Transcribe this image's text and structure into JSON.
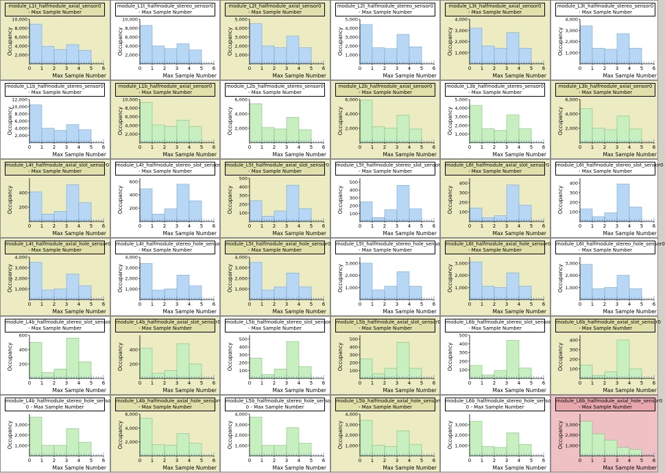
{
  "common": {
    "xlabel": "Max Sample Number",
    "ylabel": "Occupancy",
    "x_ticks": [
      0,
      1,
      2,
      3,
      4,
      5,
      6
    ]
  },
  "colors": {
    "blue_fill": "#b7d7f4",
    "green_fill": "#c8efc0",
    "bar_stroke": "#7aa7d0",
    "axis": "#000000",
    "grid_tick": "#4a7fb4",
    "bg_white": "#ffffff",
    "bg_tan": "#ecebc2",
    "bg_pink": "#efc0c4"
  },
  "chart_data": [
    {
      "type": "bar",
      "title": "module_L1t_halfmodule_axial_sensor0",
      "subtitle": "- Max Sample Number",
      "bg": "tan",
      "color": "blue",
      "ylim": [
        0,
        10000
      ],
      "yticks": [
        2000,
        4000,
        6000,
        8000,
        10000
      ],
      "x": [
        0,
        1,
        2,
        3,
        4
      ],
      "values": [
        8900,
        3900,
        3200,
        4300,
        3000
      ]
    },
    {
      "type": "bar",
      "title": "module_L1t_halfmodule_stereo_sensor0",
      "subtitle": "- Max Sample Number",
      "bg": "white",
      "color": "blue",
      "ylim": [
        0,
        10000
      ],
      "yticks": [
        2000,
        4000,
        6000,
        8000,
        10000
      ],
      "x": [
        0,
        1,
        2,
        3,
        4
      ],
      "values": [
        8600,
        4000,
        3400,
        4500,
        3100
      ]
    },
    {
      "type": "bar",
      "title": "module_L2t_halfmodule_axial_sensor0",
      "subtitle": "- Max Sample Number",
      "bg": "tan",
      "color": "blue",
      "ylim": [
        0,
        5000
      ],
      "yticks": [
        1000,
        2000,
        3000,
        4000,
        5000
      ],
      "x": [
        0,
        1,
        2,
        3,
        4
      ],
      "values": [
        4500,
        2000,
        1800,
        3100,
        1800
      ]
    },
    {
      "type": "bar",
      "title": "module_L2t_halfmodule_stereo_sensor0",
      "subtitle": "- Max Sample Number",
      "bg": "white",
      "color": "blue",
      "ylim": [
        0,
        5000
      ],
      "yticks": [
        1000,
        2000,
        3000,
        4000,
        5000
      ],
      "x": [
        0,
        1,
        2,
        3,
        4
      ],
      "values": [
        4400,
        1800,
        1700,
        3300,
        1900
      ]
    },
    {
      "type": "bar",
      "title": "module_L3t_halfmodule_axial_sensor0",
      "subtitle": "- Max Sample Number",
      "bg": "tan",
      "color": "blue",
      "ylim": [
        0,
        4000
      ],
      "yticks": [
        1000,
        2000,
        3000,
        4000
      ],
      "x": [
        0,
        1,
        2,
        3,
        4
      ],
      "values": [
        3200,
        1600,
        1400,
        2800,
        1400
      ]
    },
    {
      "type": "bar",
      "title": "module_L3t_halfmodule_stereo_sensor0",
      "subtitle": "- Max Sample Number",
      "bg": "white",
      "color": "blue",
      "ylim": [
        0,
        4000
      ],
      "yticks": [
        1000,
        2000,
        3000,
        4000
      ],
      "x": [
        0,
        1,
        2,
        3,
        4
      ],
      "values": [
        3400,
        1400,
        1300,
        2700,
        1400
      ]
    },
    {
      "type": "bar",
      "title": "module_L1b_halfmodule_stereo_sensor0",
      "subtitle": "- Max Sample Number",
      "bg": "white",
      "color": "blue",
      "ylim": [
        0,
        12000
      ],
      "yticks": [
        2000,
        4000,
        6000,
        8000,
        10000,
        12000
      ],
      "x": [
        0,
        1,
        2,
        3,
        4
      ],
      "values": [
        10500,
        4000,
        3400,
        5000,
        3600
      ]
    },
    {
      "type": "bar",
      "title": "module_L1b_halfmodule_axial_sensor0",
      "subtitle": "- Max Sample Number",
      "bg": "tan",
      "color": "green",
      "ylim": [
        0,
        10000
      ],
      "yticks": [
        2000,
        4000,
        6000,
        8000,
        10000
      ],
      "x": [
        0,
        1,
        2,
        3,
        4
      ],
      "values": [
        9300,
        4100,
        3700,
        5200,
        3700
      ]
    },
    {
      "type": "bar",
      "title": "module_L2b_halfmodule_stereo_sensor0",
      "subtitle": "- Max Sample Number",
      "bg": "white",
      "color": "green",
      "ylim": [
        0,
        6000
      ],
      "yticks": [
        2000,
        4000,
        6000
      ],
      "x": [
        0,
        1,
        2,
        3,
        4
      ],
      "values": [
        5400,
        2100,
        1900,
        3500,
        1800
      ]
    },
    {
      "type": "bar",
      "title": "module_L2b_halfmodule_axial_sensor0",
      "subtitle": "- Max Sample Number",
      "bg": "tan",
      "color": "green",
      "ylim": [
        0,
        6000
      ],
      "yticks": [
        2000,
        4000,
        6000
      ],
      "x": [
        0,
        1,
        2,
        3,
        4
      ],
      "values": [
        5900,
        2200,
        2000,
        3800,
        1900
      ]
    },
    {
      "type": "bar",
      "title": "module_L3b_halfmodule_stereo_sensor0",
      "subtitle": "- Max Sample Number",
      "bg": "white",
      "color": "green",
      "ylim": [
        0,
        5000
      ],
      "yticks": [
        1000,
        2000,
        3000,
        4000,
        5000
      ],
      "x": [
        0,
        1,
        2,
        3,
        4
      ],
      "values": [
        4300,
        1600,
        1400,
        3200,
        1600
      ]
    },
    {
      "type": "bar",
      "title": "module_L3b_halfmodule_axial_sensor0",
      "subtitle": "- Max Sample Number",
      "bg": "tan",
      "color": "green",
      "ylim": [
        0,
        6000
      ],
      "yticks": [
        2000,
        4000,
        6000
      ],
      "x": [
        0,
        1,
        2,
        3,
        4
      ],
      "values": [
        4700,
        2000,
        1800,
        3700,
        1900
      ]
    },
    {
      "type": "bar",
      "title": "module_L4t_halfmodule_axial_slot_sensor0",
      "subtitle": "- Max Sample Number",
      "bg": "tan",
      "color": "blue",
      "ylim": [
        0,
        600
      ],
      "yticks": [
        200,
        400
      ],
      "x": [
        0,
        1,
        2,
        3,
        4
      ],
      "values": [
        410,
        100,
        140,
        510,
        260
      ]
    },
    {
      "type": "bar",
      "title": "module_L4t_halfmodule_stereo_slot_sensor0",
      "subtitle": "- Max Sample Number",
      "bg": "white",
      "color": "blue",
      "ylim": [
        0,
        650
      ],
      "yticks": [
        200,
        400,
        600
      ],
      "x": [
        0,
        1,
        2,
        3,
        4
      ],
      "values": [
        490,
        110,
        190,
        560,
        310
      ]
    },
    {
      "type": "bar",
      "title": "module_L5t_halfmodule_axial_slot_sensor0",
      "subtitle": "- Max Sample Number",
      "bg": "tan",
      "color": "blue",
      "ylim": [
        0,
        500
      ],
      "yticks": [
        100,
        200,
        300,
        400,
        500
      ],
      "x": [
        0,
        1,
        2,
        3,
        4
      ],
      "values": [
        240,
        60,
        120,
        420,
        150
      ]
    },
    {
      "type": "bar",
      "title": "module_L5t_halfmodule_stereo_slot_sensor0",
      "subtitle": "- Max Sample Number",
      "bg": "white",
      "color": "blue",
      "ylim": [
        0,
        550
      ],
      "yticks": [
        100,
        200,
        300,
        400,
        500
      ],
      "x": [
        0,
        1,
        2,
        3,
        4
      ],
      "values": [
        250,
        50,
        150,
        460,
        160
      ]
    },
    {
      "type": "bar",
      "title": "module_L6t_halfmodule_axial_slot_sensor0",
      "subtitle": "- Max Sample Number",
      "bg": "tan",
      "color": "blue",
      "ylim": [
        0,
        450
      ],
      "yticks": [
        100,
        200,
        300,
        400
      ],
      "x": [
        0,
        1,
        2,
        3,
        4
      ],
      "values": [
        140,
        40,
        60,
        380,
        170
      ]
    },
    {
      "type": "bar",
      "title": "module_L6t_halfmodule_stereo_slot_sensor0",
      "subtitle": "- Max Sample Number",
      "bg": "white",
      "color": "blue",
      "ylim": [
        0,
        450
      ],
      "yticks": [
        100,
        200,
        300,
        400
      ],
      "x": [
        0,
        1,
        2,
        3,
        4
      ],
      "values": [
        130,
        50,
        90,
        390,
        150
      ]
    },
    {
      "type": "bar",
      "title": "module_L4t_halfmodule_axial_hole_sensor0",
      "subtitle": "- Max Sample Number",
      "bg": "tan",
      "color": "blue",
      "ylim": [
        0,
        4000
      ],
      "yticks": [
        1000,
        2000,
        3000,
        4000
      ],
      "x": [
        0,
        1,
        2,
        3,
        4
      ],
      "values": [
        3500,
        900,
        1000,
        2400,
        1300
      ]
    },
    {
      "type": "bar",
      "title": "module_L4t_halfmodule_stereo_hole_sensor0",
      "subtitle": "- Max Sample Number",
      "bg": "white",
      "color": "blue",
      "ylim": [
        0,
        4000
      ],
      "yticks": [
        1000,
        2000,
        3000,
        4000
      ],
      "x": [
        0,
        1,
        2,
        3,
        4
      ],
      "values": [
        3400,
        900,
        1000,
        2300,
        1300
      ]
    },
    {
      "type": "bar",
      "title": "module_L5t_halfmodule_axial_hole_sensor0",
      "subtitle": "- Max Sample Number",
      "bg": "tan",
      "color": "blue",
      "ylim": [
        0,
        4000
      ],
      "yticks": [
        1000,
        2000,
        3000,
        4000
      ],
      "x": [
        0,
        1,
        2,
        3,
        4
      ],
      "values": [
        3500,
        900,
        1200,
        2500,
        1200
      ]
    },
    {
      "type": "bar",
      "title": "module_L5t_halfmodule_stereo_hole_sensor0",
      "subtitle": "- Max Sample Number",
      "bg": "white",
      "color": "blue",
      "ylim": [
        0,
        3500
      ],
      "yticks": [
        1000,
        2000,
        3000
      ],
      "x": [
        0,
        1,
        2,
        3,
        4
      ],
      "values": [
        3000,
        800,
        1100,
        2300,
        1100
      ]
    },
    {
      "type": "bar",
      "title": "module_L6t_halfmodule_axial_hole_sensor0",
      "subtitle": "- Max Sample Number",
      "bg": "tan",
      "color": "blue",
      "ylim": [
        0,
        3500
      ],
      "yticks": [
        1000,
        2000,
        3000
      ],
      "x": [
        0,
        1,
        2,
        3,
        4
      ],
      "values": [
        3100,
        1100,
        1000,
        2200,
        1100
      ]
    },
    {
      "type": "bar",
      "title": "module_L6t_halfmodule_stereo_hole_sensor0",
      "subtitle": "- Max Sample Number",
      "bg": "white",
      "color": "blue",
      "ylim": [
        0,
        3500
      ],
      "yticks": [
        1000,
        2000,
        3000
      ],
      "x": [
        0,
        1,
        2,
        3,
        4
      ],
      "values": [
        2900,
        900,
        1000,
        2000,
        900
      ]
    },
    {
      "type": "bar",
      "title": "module_L4b_halfmodule_stereo_slot_sensor0",
      "subtitle": "- Max Sample Number",
      "bg": "white",
      "color": "green",
      "ylim": [
        0,
        600
      ],
      "yticks": [
        200,
        400,
        600
      ],
      "x": [
        0,
        1,
        2,
        3,
        4
      ],
      "values": [
        500,
        80,
        130,
        560,
        230
      ]
    },
    {
      "type": "bar",
      "title": "module_L4b_halfmodule_axial_slot_sensor0",
      "subtitle": "- Max Sample Number",
      "bg": "tan",
      "color": "green",
      "ylim": [
        0,
        600
      ],
      "yticks": [
        200,
        400
      ],
      "x": [
        0,
        1,
        2,
        3,
        4
      ],
      "values": [
        420,
        70,
        110,
        480,
        200
      ]
    },
    {
      "type": "bar",
      "title": "module_L5b_halfmodule_stereo_slot_sensor0",
      "subtitle": "- Max Sample Number",
      "bg": "white",
      "color": "green",
      "ylim": [
        0,
        550
      ],
      "yticks": [
        100,
        200,
        300,
        400,
        500
      ],
      "x": [
        0,
        1,
        2,
        3,
        4
      ],
      "values": [
        260,
        50,
        120,
        470,
        150
      ]
    },
    {
      "type": "bar",
      "title": "module_L5b_halfmodule_axial_slot_sensor0",
      "subtitle": "- Max Sample Number",
      "bg": "tan",
      "color": "green",
      "ylim": [
        0,
        550
      ],
      "yticks": [
        100,
        200,
        300,
        400,
        500
      ],
      "x": [
        0,
        1,
        2,
        3,
        4
      ],
      "values": [
        250,
        60,
        130,
        460,
        130
      ]
    },
    {
      "type": "bar",
      "title": "module_L6b_halfmodule_stereo_slot_sensor0",
      "subtitle": "- Max Sample Number",
      "bg": "white",
      "color": "green",
      "ylim": [
        0,
        500
      ],
      "yticks": [
        100,
        200,
        300,
        400,
        500
      ],
      "x": [
        0,
        1,
        2,
        3,
        4
      ],
      "values": [
        150,
        40,
        90,
        440,
        120
      ]
    },
    {
      "type": "bar",
      "title": "module_L6b_halfmodule_axial_slot_sensor0",
      "subtitle": "- Max Sample Number",
      "bg": "tan",
      "color": "green",
      "ylim": [
        0,
        450
      ],
      "yticks": [
        100,
        200,
        300,
        400
      ],
      "x": [
        0,
        1,
        2,
        3,
        4
      ],
      "values": [
        140,
        30,
        70,
        400,
        100
      ]
    },
    {
      "type": "bar",
      "title": "module_L4b_halfmodule_stereo_hole_sensor",
      "subtitle": "0 - Max Sample Number",
      "bg": "white",
      "color": "green",
      "ylim": [
        0,
        4000
      ],
      "yticks": [
        1000,
        2000,
        3000
      ],
      "x": [
        0,
        1,
        2,
        3,
        4
      ],
      "values": [
        3700,
        1000,
        1000,
        2600,
        1300
      ]
    },
    {
      "type": "bar",
      "title": "module_L4b_halfmodule_axial_hole_sensor0",
      "subtitle": "- Max Sample Number",
      "bg": "tan",
      "color": "green",
      "ylim": [
        0,
        6000
      ],
      "yticks": [
        2000,
        4000,
        6000
      ],
      "x": [
        0,
        1,
        2,
        3,
        4
      ],
      "values": [
        5400,
        1600,
        1500,
        3200,
        1800
      ]
    },
    {
      "type": "bar",
      "title": "module_L5b_halfmodule_stereo_hole_sensor",
      "subtitle": "0 - Max Sample Number",
      "bg": "white",
      "color": "green",
      "ylim": [
        0,
        4000
      ],
      "yticks": [
        1000,
        2000,
        3000,
        4000
      ],
      "x": [
        0,
        1,
        2,
        3,
        4
      ],
      "values": [
        3700,
        1000,
        1000,
        2700,
        1200
      ]
    },
    {
      "type": "bar",
      "title": "module_L5b_halfmodule_axial_hole_sensor0",
      "subtitle": "- Max Sample Number",
      "bg": "tan",
      "color": "green",
      "ylim": [
        0,
        4000
      ],
      "yticks": [
        1000,
        2000,
        3000,
        4000
      ],
      "x": [
        0,
        1,
        2,
        3,
        4
      ],
      "values": [
        3400,
        1000,
        900,
        2400,
        1100
      ]
    },
    {
      "type": "bar",
      "title": "module_L6b_halfmodule_stereo_hole_sensor",
      "subtitle": "0 - Max Sample Number",
      "bg": "white",
      "color": "green",
      "ylim": [
        0,
        4000
      ],
      "yticks": [
        1000,
        2000,
        3000
      ],
      "x": [
        0,
        1,
        2,
        3,
        4
      ],
      "values": [
        3300,
        900,
        800,
        2200,
        1100
      ]
    },
    {
      "type": "bar",
      "title": "module_L6b_halfmodule_axial_hole_sensor0",
      "subtitle": "- Max Sample Number",
      "bg": "pink",
      "color": "green",
      "ylim": [
        0,
        4000
      ],
      "yticks": [
        1000,
        2000,
        3000
      ],
      "x": [
        0,
        1,
        2,
        3,
        4
      ],
      "values": [
        3300,
        2100,
        1500,
        800,
        600
      ]
    }
  ]
}
